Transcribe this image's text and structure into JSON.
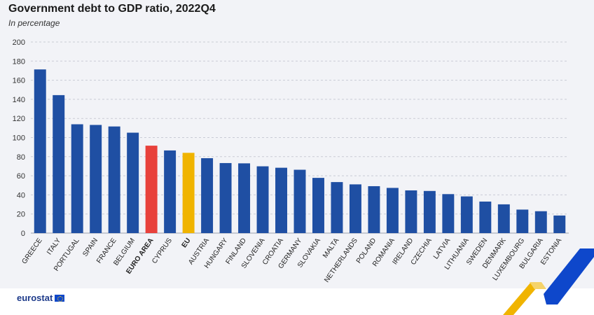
{
  "header": {
    "title": "Government debt to GDP ratio, 2022Q4",
    "subtitle": "In percentage"
  },
  "branding": {
    "logo_text": "eurostat",
    "logo_icon": "eu-flag-icon"
  },
  "colors": {
    "default_bar": "#1f4fa3",
    "euro_area_bar": "#e8413b",
    "eu_bar": "#f0b400",
    "grid": "#c9ccd6",
    "background": "#f2f3f7"
  },
  "chart_data": {
    "type": "bar",
    "title": "Government debt to GDP ratio, 2022Q4",
    "subtitle": "In percentage",
    "xlabel": "",
    "ylabel": "",
    "ylim": [
      0,
      200
    ],
    "yticks": [
      0,
      20,
      40,
      60,
      80,
      100,
      120,
      140,
      160,
      180,
      200
    ],
    "grid": true,
    "legend": "none",
    "categories": [
      "GREECE",
      "ITALY",
      "PORTUGAL",
      "SPAIN",
      "FRANCE",
      "BELGIUM",
      "EURO AREA",
      "CYPRUS",
      "EU",
      "AUSTRIA",
      "HUNGARY",
      "FINLAND",
      "SLOVENIA",
      "CROATIA",
      "GERMANY",
      "SLOVAKIA",
      "MALTA",
      "NETHERLANDS",
      "POLAND",
      "ROMANIA",
      "IRELAND",
      "CZECHIA",
      "LATVIA",
      "LITHUANIA",
      "SWEDEN",
      "DENMARK",
      "LUXEMBOURG",
      "BULGARIA",
      "ESTONIA"
    ],
    "values": [
      171.3,
      144.4,
      113.9,
      113.2,
      111.6,
      105.1,
      91.5,
      86.5,
      84.0,
      78.4,
      73.3,
      73.0,
      69.9,
      68.4,
      66.3,
      57.8,
      53.4,
      51.0,
      49.1,
      47.3,
      44.7,
      44.1,
      40.8,
      38.4,
      33.0,
      30.1,
      24.6,
      22.9,
      18.4
    ],
    "highlight": {
      "EURO AREA": "#e8413b",
      "EU": "#f0b400"
    },
    "bold_categories": [
      "EURO AREA",
      "EU"
    ]
  }
}
